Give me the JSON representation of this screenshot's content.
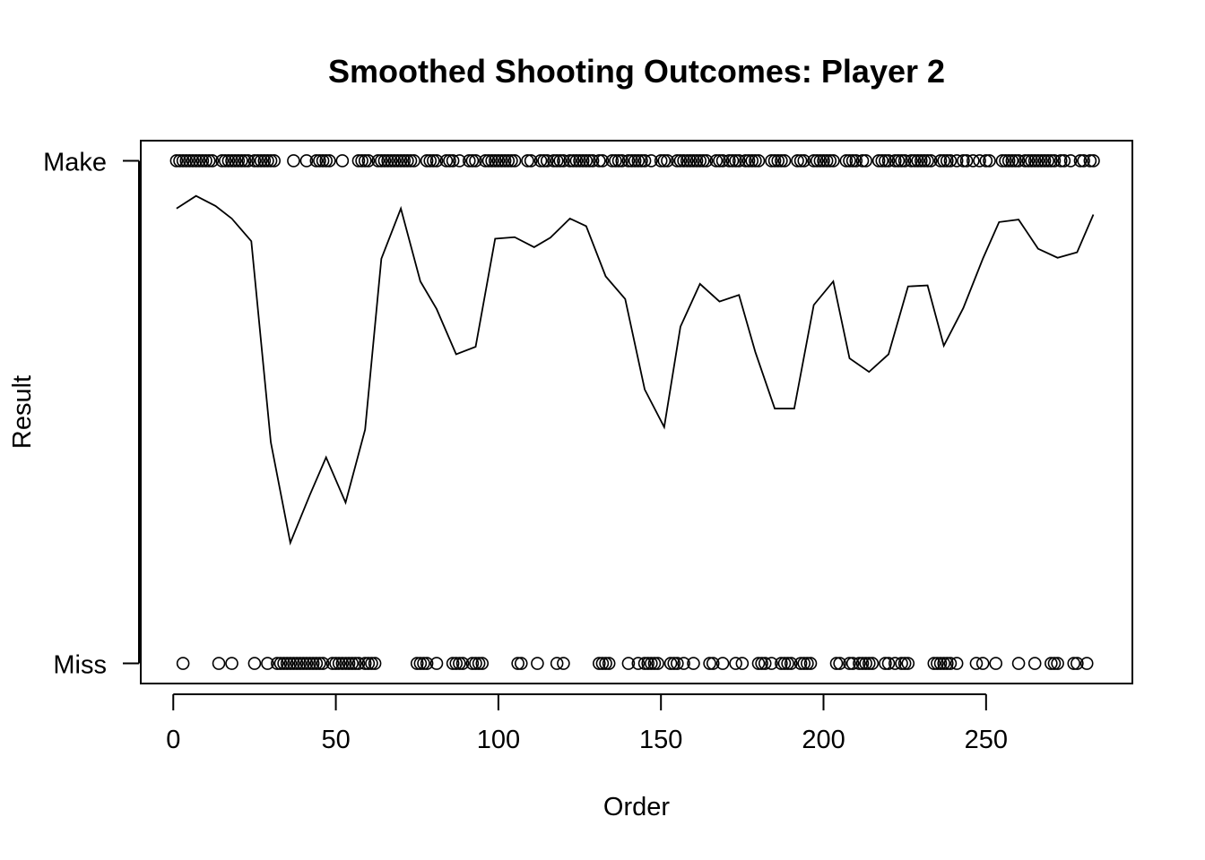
{
  "chart_data": {
    "type": "scatter",
    "title": "Smoothed Shooting Outcomes: Player 2",
    "xlabel": "Order",
    "ylabel": "Result",
    "xlim": [
      -10,
      295
    ],
    "ylim": [
      -0.04,
      1.04
    ],
    "x_ticks": [
      0,
      50,
      100,
      150,
      200,
      250
    ],
    "y_ticks": [
      {
        "value": 1,
        "label": "Make"
      },
      {
        "value": 0,
        "label": "Miss"
      }
    ],
    "grid": false,
    "legend": "none",
    "series": [
      {
        "type": "points",
        "y_value": 1,
        "x": [
          1,
          2,
          3,
          4,
          5,
          6,
          7,
          8,
          9,
          10,
          11,
          12,
          15,
          16,
          17,
          18,
          19,
          20,
          21,
          22,
          23,
          25,
          26,
          27,
          28,
          29,
          30,
          31,
          37,
          41,
          44,
          45,
          46,
          47,
          48,
          52,
          57,
          58,
          59,
          60,
          63,
          64,
          65,
          66,
          67,
          68,
          69,
          70,
          71,
          72,
          73,
          74,
          78,
          79,
          80,
          81,
          84,
          85,
          86,
          88,
          91,
          92,
          93,
          96,
          97,
          98,
          99,
          100,
          101,
          102,
          103,
          104,
          105,
          109,
          110,
          113,
          114,
          115,
          117,
          118,
          119,
          120,
          122,
          123,
          124,
          125,
          126,
          127,
          128,
          129,
          131,
          132,
          135,
          136,
          137,
          138,
          140,
          141,
          142,
          143,
          144,
          145,
          147,
          150,
          151,
          152,
          155,
          156,
          157,
          158,
          159,
          160,
          161,
          162,
          163,
          164,
          167,
          168,
          169,
          171,
          172,
          173,
          174,
          176,
          177,
          178,
          179,
          180,
          184,
          185,
          186,
          187,
          188,
          192,
          193,
          194,
          197,
          198,
          199,
          200,
          201,
          202,
          203,
          207,
          208,
          209,
          210,
          212,
          213,
          217,
          218,
          219,
          220,
          222,
          223,
          224,
          225,
          227,
          228,
          229,
          230,
          231,
          232,
          233,
          236,
          237,
          238,
          239,
          241,
          243,
          244,
          246,
          248,
          250,
          251,
          255,
          256,
          257,
          258,
          259,
          260,
          262,
          263,
          264,
          265,
          266,
          267,
          268,
          269,
          270,
          271,
          273,
          274,
          276,
          279,
          280,
          282,
          283
        ],
        "marker": "open-circle"
      },
      {
        "type": "points",
        "y_value": 0,
        "x": [
          3,
          14,
          18,
          25,
          29,
          32,
          33,
          34,
          35,
          36,
          37,
          38,
          39,
          40,
          41,
          42,
          43,
          44,
          45,
          46,
          49,
          50,
          51,
          52,
          53,
          54,
          55,
          56,
          57,
          59,
          60,
          61,
          62,
          75,
          76,
          77,
          78,
          81,
          86,
          87,
          88,
          89,
          92,
          93,
          94,
          95,
          106,
          107,
          112,
          118,
          120,
          131,
          132,
          133,
          134,
          140,
          143,
          145,
          146,
          147,
          148,
          149,
          153,
          154,
          155,
          157,
          160,
          165,
          166,
          169,
          173,
          175,
          180,
          181,
          182,
          184,
          187,
          188,
          189,
          190,
          193,
          194,
          195,
          196,
          204,
          205,
          208,
          209,
          211,
          212,
          213,
          214,
          215,
          219,
          220,
          222,
          224,
          225,
          226,
          234,
          235,
          236,
          237,
          238,
          239,
          241,
          247,
          249,
          253,
          260,
          265,
          270,
          271,
          272,
          277,
          278,
          281
        ],
        "marker": "open-circle"
      },
      {
        "type": "line",
        "x": [
          1,
          7,
          13,
          18,
          24,
          30,
          36,
          42,
          47,
          53,
          59,
          64,
          70,
          76,
          81,
          87,
          93,
          99,
          105,
          111,
          116,
          122,
          127,
          133,
          139,
          145,
          151,
          156,
          162,
          168,
          174,
          179,
          185,
          191,
          197,
          203,
          208,
          214,
          220,
          226,
          232,
          237,
          243,
          249,
          254,
          260,
          266,
          272,
          278,
          283
        ],
        "y": [
          0.905,
          0.93,
          0.91,
          0.885,
          0.84,
          0.44,
          0.24,
          0.335,
          0.41,
          0.32,
          0.465,
          0.805,
          0.905,
          0.76,
          0.705,
          0.615,
          0.63,
          0.845,
          0.848,
          0.828,
          0.847,
          0.885,
          0.87,
          0.77,
          0.725,
          0.545,
          0.47,
          0.67,
          0.755,
          0.72,
          0.733,
          0.62,
          0.507,
          0.507,
          0.713,
          0.76,
          0.607,
          0.58,
          0.615,
          0.75,
          0.752,
          0.632,
          0.707,
          0.805,
          0.878,
          0.883,
          0.825,
          0.807,
          0.818,
          0.893
        ]
      }
    ]
  }
}
